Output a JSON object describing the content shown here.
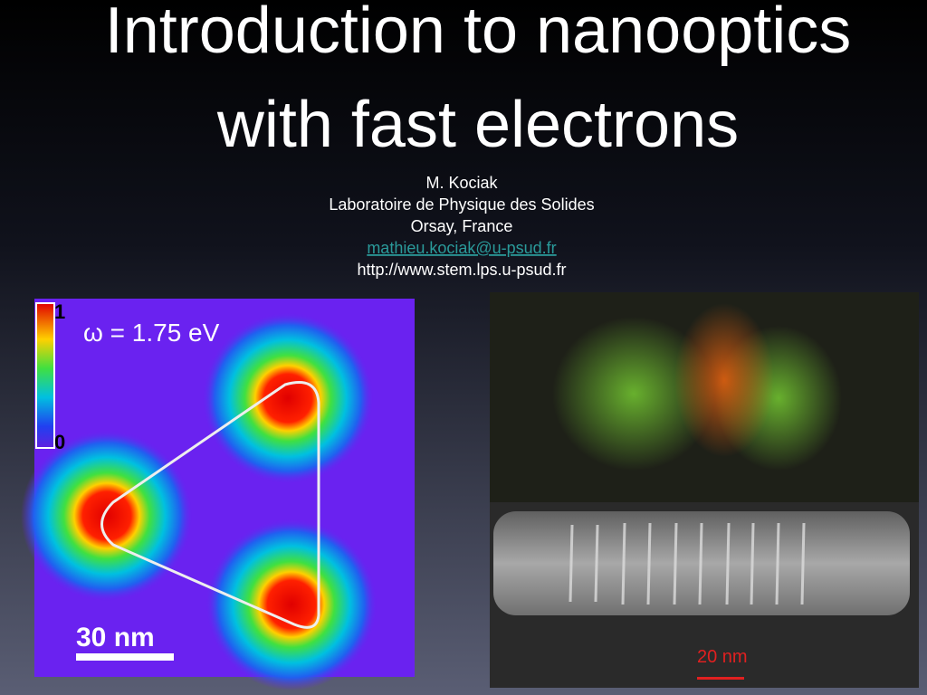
{
  "title": {
    "line1": "Introduction to nanooptics",
    "line2": "with fast electrons"
  },
  "author": {
    "name": "M. Kociak",
    "lab": "Laboratoire de Physique des Solides",
    "place": "Orsay, France",
    "email": "mathieu.kociak@u-psud.fr",
    "website": "http://www.stem.lps.u-psud.fr"
  },
  "left_image": {
    "colorbar_max": "1",
    "colorbar_min": "0",
    "energy": "ω = 1.75 eV",
    "scale": "30 nm"
  },
  "right_image": {
    "scale": "20 nm"
  }
}
